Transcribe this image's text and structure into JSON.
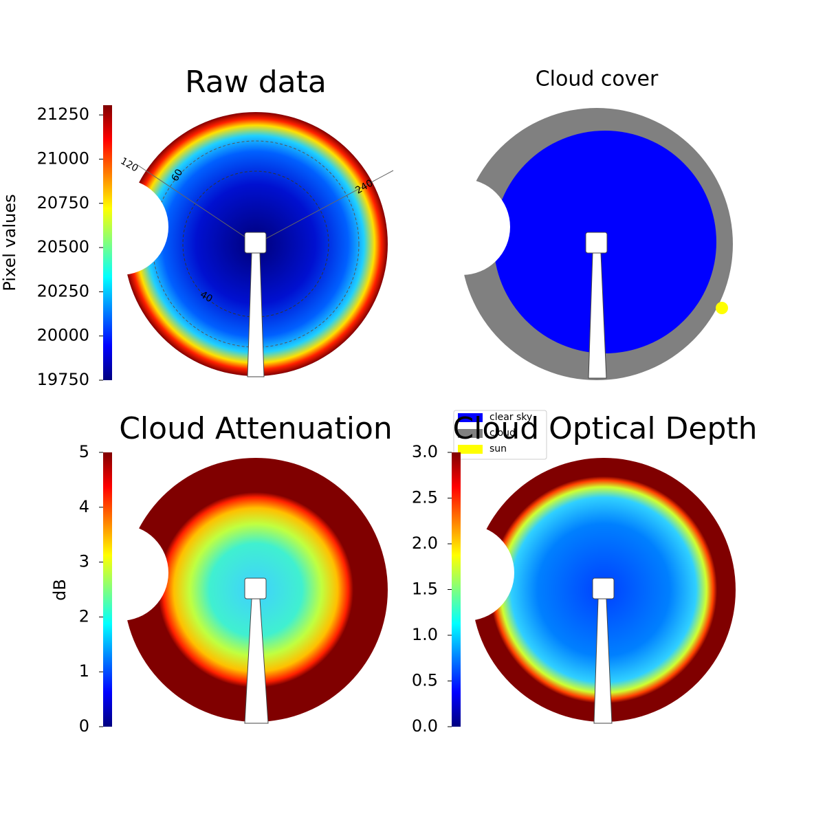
{
  "chart_data": [
    {
      "type": "image",
      "title": "Raw data",
      "annotations": [
        "120",
        "60",
        "240",
        "40"
      ],
      "colorbar": {
        "label": "Pixel values",
        "colormap": "jet",
        "lim": [
          19750,
          21305
        ],
        "ticks": [
          19750,
          20000,
          20250,
          20500,
          20750,
          21000,
          21250
        ]
      }
    },
    {
      "type": "classes",
      "title": "Cloud cover",
      "series": [
        {
          "name": "clear sky",
          "color": "#0000ff"
        },
        {
          "name": "cloud",
          "color": "#808080"
        },
        {
          "name": "sun",
          "color": "#ffff00"
        }
      ]
    },
    {
      "type": "image",
      "title": "Cloud Attenuation",
      "colorbar": {
        "label": "dB",
        "colormap": "jet",
        "lim": [
          0,
          5
        ],
        "ticks": [
          0,
          1,
          2,
          3,
          4,
          5
        ]
      }
    },
    {
      "type": "image",
      "title": "Cloud Optical Depth",
      "colorbar": {
        "colormap": "jet",
        "lim": [
          0,
          3
        ],
        "ticks": [
          {
            "value": 0,
            "label": "0.0"
          },
          0.5,
          {
            "value": 1,
            "label": "1.0"
          },
          1.5,
          {
            "value": 2,
            "label": "2.0"
          },
          2.5,
          {
            "value": 3,
            "label": "3.0"
          }
        ]
      }
    }
  ]
}
